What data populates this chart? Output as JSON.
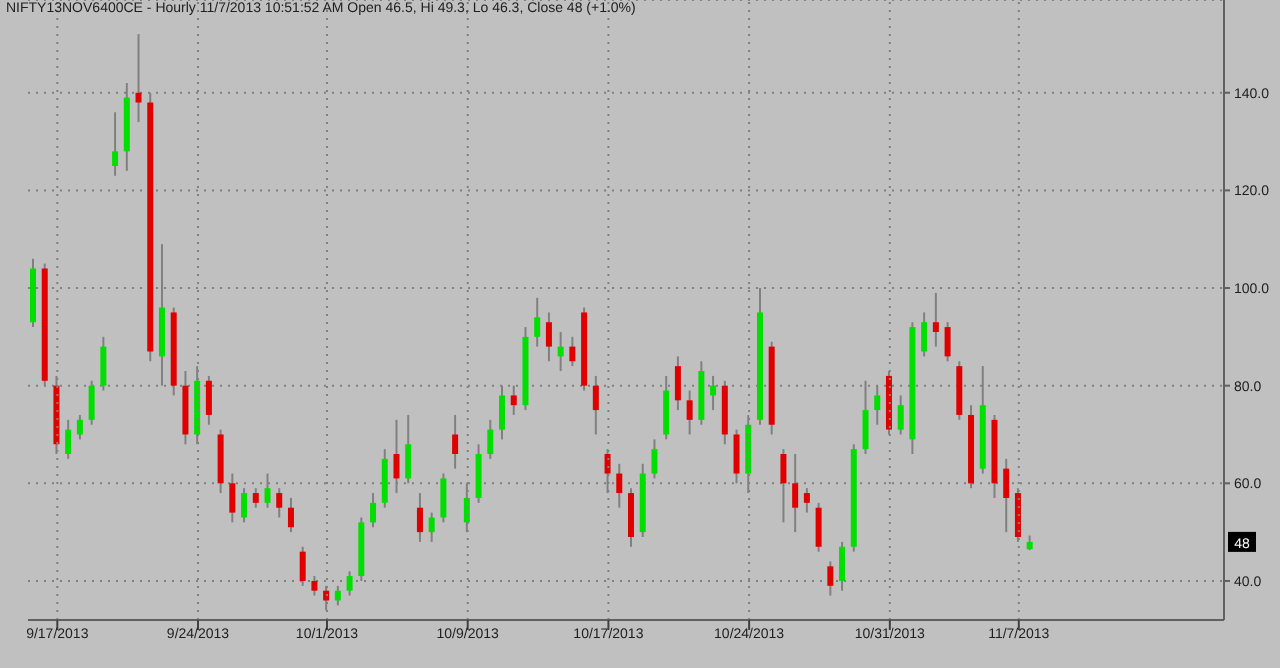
{
  "chart_data": {
    "type": "candlestick",
    "title": "NIFTY13NOV6400CE - Hourly 11/7/2013 10:51:52 AM Open 46.5, Hi 49.3, Lo 46.3, Close 48 (+1.0%)",
    "categories": [
      null,
      null,
      "9/17/2013",
      null,
      null,
      null,
      null,
      null,
      null,
      null,
      null,
      null,
      null,
      null,
      "9/24/2013",
      null,
      null,
      null,
      null,
      null,
      null,
      null,
      null,
      null,
      null,
      "10/1/2013",
      null,
      null,
      null,
      null,
      null,
      null,
      null,
      null,
      null,
      null,
      null,
      "10/9/2013",
      null,
      null,
      null,
      null,
      null,
      null,
      null,
      null,
      null,
      null,
      null,
      "10/17/2013",
      null,
      null,
      null,
      null,
      null,
      null,
      null,
      null,
      null,
      null,
      null,
      "10/24/2013",
      null,
      null,
      null,
      null,
      null,
      null,
      null,
      null,
      null,
      null,
      null,
      "10/31/2013",
      null,
      null,
      null,
      null,
      null,
      null,
      null,
      null,
      null,
      null,
      "11/7/2013",
      null,
      null,
      null,
      null,
      null,
      null,
      null,
      null,
      null,
      null,
      null,
      null,
      null,
      null,
      null,
      null,
      null
    ],
    "ohlc": [
      [
        93,
        106,
        92,
        104
      ],
      [
        104,
        105,
        80,
        81
      ],
      [
        80,
        82,
        66,
        68
      ],
      [
        66,
        73,
        65,
        71
      ],
      [
        70,
        74,
        69,
        73
      ],
      [
        73,
        81,
        72,
        80
      ],
      [
        80,
        90,
        79,
        88
      ],
      [
        125,
        136,
        123,
        128
      ],
      [
        128,
        142,
        124,
        139
      ],
      [
        140,
        152,
        134,
        138
      ],
      [
        138,
        140,
        85,
        87
      ],
      [
        86,
        109,
        80,
        96
      ],
      [
        95,
        96,
        78,
        80
      ],
      [
        80,
        83,
        68,
        70
      ],
      [
        70,
        84,
        68,
        81
      ],
      [
        81,
        82,
        72,
        74
      ],
      [
        70,
        71,
        58,
        60
      ],
      [
        60,
        62,
        52,
        54
      ],
      [
        53,
        59,
        52,
        58
      ],
      [
        58,
        59,
        55,
        56
      ],
      [
        56,
        62,
        55,
        59
      ],
      [
        58,
        59,
        53,
        55
      ],
      [
        55,
        57,
        50,
        51
      ],
      [
        46,
        47,
        39,
        40
      ],
      [
        40,
        41,
        37,
        38
      ],
      [
        38,
        39,
        34,
        36
      ],
      [
        36,
        39,
        35,
        38
      ],
      [
        38,
        42,
        37,
        41
      ],
      [
        41,
        53,
        40,
        52
      ],
      [
        52,
        58,
        51,
        56
      ],
      [
        56,
        67,
        55,
        65
      ],
      [
        66,
        73,
        58,
        61
      ],
      [
        61,
        74,
        60,
        68
      ],
      [
        55,
        58,
        48,
        50
      ],
      [
        50,
        54,
        48,
        53
      ],
      [
        53,
        62,
        52,
        61
      ],
      [
        70,
        74,
        63,
        66
      ],
      [
        52,
        60,
        50,
        57
      ],
      [
        57,
        68,
        56,
        66
      ],
      [
        66,
        73,
        65,
        71
      ],
      [
        71,
        80,
        69,
        78
      ],
      [
        78,
        80,
        74,
        76
      ],
      [
        76,
        92,
        75,
        90
      ],
      [
        90,
        98,
        88,
        94
      ],
      [
        93,
        95,
        85,
        88
      ],
      [
        86,
        91,
        83,
        88
      ],
      [
        88,
        90,
        84,
        85
      ],
      [
        95,
        96,
        79,
        80
      ],
      [
        80,
        82,
        70,
        75
      ],
      [
        66,
        67,
        58,
        62
      ],
      [
        62,
        64,
        55,
        58
      ],
      [
        58,
        59,
        47,
        49
      ],
      [
        50,
        64,
        49,
        62
      ],
      [
        62,
        69,
        61,
        67
      ],
      [
        70,
        82,
        69,
        79
      ],
      [
        84,
        86,
        75,
        77
      ],
      [
        77,
        79,
        70,
        73
      ],
      [
        73,
        85,
        72,
        83
      ],
      [
        78,
        82,
        75,
        80
      ],
      [
        80,
        81,
        68,
        70
      ],
      [
        70,
        71,
        60,
        62
      ],
      [
        62,
        74,
        58,
        72
      ],
      [
        73,
        100,
        72,
        95
      ],
      [
        88,
        89,
        70,
        72
      ],
      [
        66,
        67,
        52,
        60
      ],
      [
        60,
        66,
        50,
        55
      ],
      [
        58,
        59,
        54,
        56
      ],
      [
        55,
        56,
        46,
        47
      ],
      [
        43,
        44,
        37,
        39
      ],
      [
        40,
        48,
        38,
        47
      ],
      [
        47,
        68,
        46,
        67
      ],
      [
        67,
        81,
        66,
        75
      ],
      [
        75,
        80,
        72,
        78
      ],
      [
        82,
        83,
        70,
        71
      ],
      [
        71,
        78,
        70,
        76
      ],
      [
        69,
        93,
        66,
        92
      ],
      [
        87,
        95,
        86,
        93
      ],
      [
        93,
        99,
        88,
        91
      ],
      [
        92,
        93,
        85,
        86
      ],
      [
        84,
        85,
        73,
        74
      ],
      [
        74,
        76,
        59,
        60
      ],
      [
        63,
        84,
        62,
        76
      ],
      [
        73,
        74,
        57,
        60
      ],
      [
        63,
        65,
        50,
        57
      ],
      [
        58,
        59,
        48,
        49
      ],
      [
        46.5,
        49.3,
        46.3,
        48
      ],
      null,
      null,
      null,
      null,
      null,
      null,
      null,
      null,
      null,
      null,
      null,
      null,
      null,
      null,
      null,
      null
    ],
    "colors": [
      "#00e000",
      "#e00000",
      "#e00000",
      "#00e000",
      "#00e000",
      "#00e000",
      "#00e000",
      "#00e000",
      "#00e000",
      "#e00000",
      "#e00000",
      "#00e000",
      "#e00000",
      "#e00000",
      "#00e000",
      "#e00000",
      "#e00000",
      "#e00000",
      "#00e000",
      "#e00000",
      "#00e000",
      "#e00000",
      "#e00000",
      "#e00000",
      "#e00000",
      "#e00000",
      "#00e000",
      "#00e000",
      "#00e000",
      "#00e000",
      "#00e000",
      "#e00000",
      "#00e000",
      "#e00000",
      "#00e000",
      "#00e000",
      "#e00000",
      "#00e000",
      "#00e000",
      "#00e000",
      "#00e000",
      "#e00000",
      "#00e000",
      "#00e000",
      "#e00000",
      "#00e000",
      "#e00000",
      "#e00000",
      "#e00000",
      "#e00000",
      "#e00000",
      "#e00000",
      "#00e000",
      "#00e000",
      "#00e000",
      "#e00000",
      "#e00000",
      "#00e000",
      "#00e000",
      "#e00000",
      "#e00000",
      "#00e000",
      "#00e000",
      "#e00000",
      "#e00000",
      "#e00000",
      "#e00000",
      "#e00000",
      "#e00000",
      "#00e000",
      "#00e000",
      "#00e000",
      "#00e000",
      "#e00000",
      "#00e000",
      "#00e000",
      "#00e000",
      "#e00000",
      "#e00000",
      "#e00000",
      "#e00000",
      "#00e000",
      "#e00000",
      "#e00000",
      "#e00000",
      "#00e000",
      null,
      null,
      null,
      null,
      null,
      null,
      null,
      null,
      null,
      null,
      null,
      null,
      null,
      null,
      null,
      null
    ],
    "ylim": [
      32,
      159
    ],
    "yticks": [
      {
        "value": 40,
        "label": "40.0"
      },
      {
        "value": 60,
        "label": "60.0"
      },
      {
        "value": 80,
        "label": "80.0"
      },
      {
        "value": 100,
        "label": "100.0"
      },
      {
        "value": 120,
        "label": "120.0"
      },
      {
        "value": 140,
        "label": "140.0"
      }
    ],
    "grid": true,
    "annotations": [
      {
        "text": "48",
        "y": 48
      }
    ]
  }
}
